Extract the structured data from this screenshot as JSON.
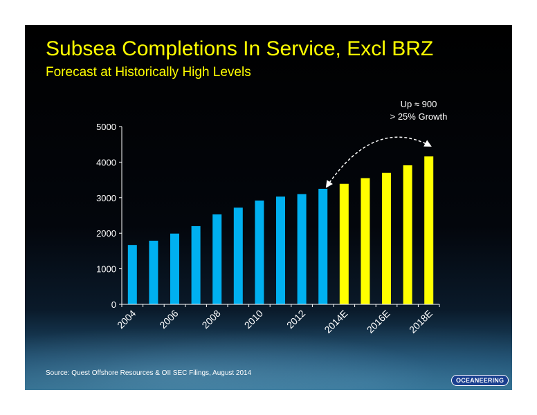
{
  "slide": {
    "title": "Subsea Completions In Service, Excl BRZ",
    "subtitle": "Forecast at Historically High Levels",
    "source": "Source:  Quest Offshore Resources & OII SEC Filings, August 2014",
    "logo": "OCEANEERING"
  },
  "annotation": {
    "line1": "Up ≈ 900",
    "line2": "> 25% Growth"
  },
  "colors": {
    "actual": "#00b0f0",
    "forecast": "#ffff00",
    "title": "#ffff00",
    "background": "#000000"
  },
  "chart_data": {
    "type": "bar",
    "categories": [
      "2004",
      "2005",
      "2006",
      "2007",
      "2008",
      "2009",
      "2010",
      "2011",
      "2012",
      "2013",
      "2014E",
      "2015E",
      "2016E",
      "2017E",
      "2018E"
    ],
    "tick_labels": [
      "2004",
      "",
      "2006",
      "",
      "2008",
      "",
      "2010",
      "",
      "2012",
      "",
      "2014E",
      "",
      "2016E",
      "",
      "2018E"
    ],
    "values": [
      1670,
      1790,
      1990,
      2200,
      2530,
      2720,
      2920,
      3030,
      3100,
      3250,
      3390,
      3550,
      3700,
      3910,
      4160
    ],
    "forecast": [
      false,
      false,
      false,
      false,
      false,
      false,
      false,
      false,
      false,
      false,
      true,
      true,
      true,
      true,
      true
    ],
    "ylim": [
      0,
      5000
    ],
    "yticks": [
      0,
      1000,
      2000,
      3000,
      4000,
      5000
    ],
    "grid": false,
    "legend": "none"
  }
}
